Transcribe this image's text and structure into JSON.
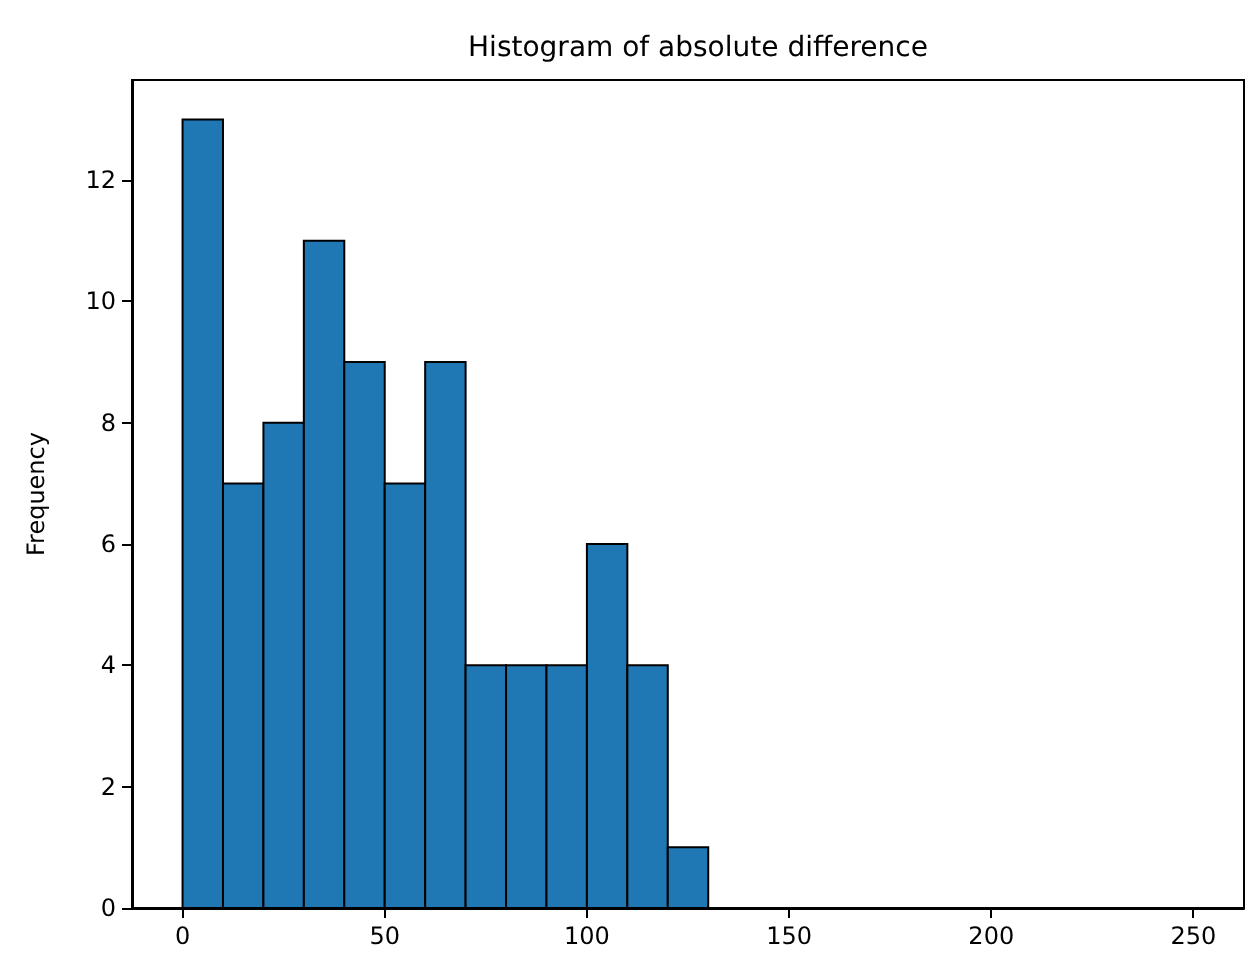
{
  "chart_data": {
    "type": "histogram",
    "title": "Histogram of absolute difference",
    "ylabel": "Frequency",
    "bins": [
      0,
      10,
      20,
      30,
      40,
      50,
      60,
      70,
      80,
      90,
      100,
      110,
      120,
      130
    ],
    "values": [
      13,
      7,
      8,
      11,
      9,
      7,
      9,
      4,
      4,
      4,
      6,
      4,
      1
    ],
    "color": "#1f77b4",
    "xlim": [
      -12.5,
      262.5
    ],
    "xticks": [
      0,
      50,
      100,
      150,
      200,
      250
    ],
    "ylim": [
      0,
      13.65
    ],
    "yticks": [
      0,
      2,
      4,
      6,
      8,
      10,
      12
    ],
    "grid": false
  }
}
